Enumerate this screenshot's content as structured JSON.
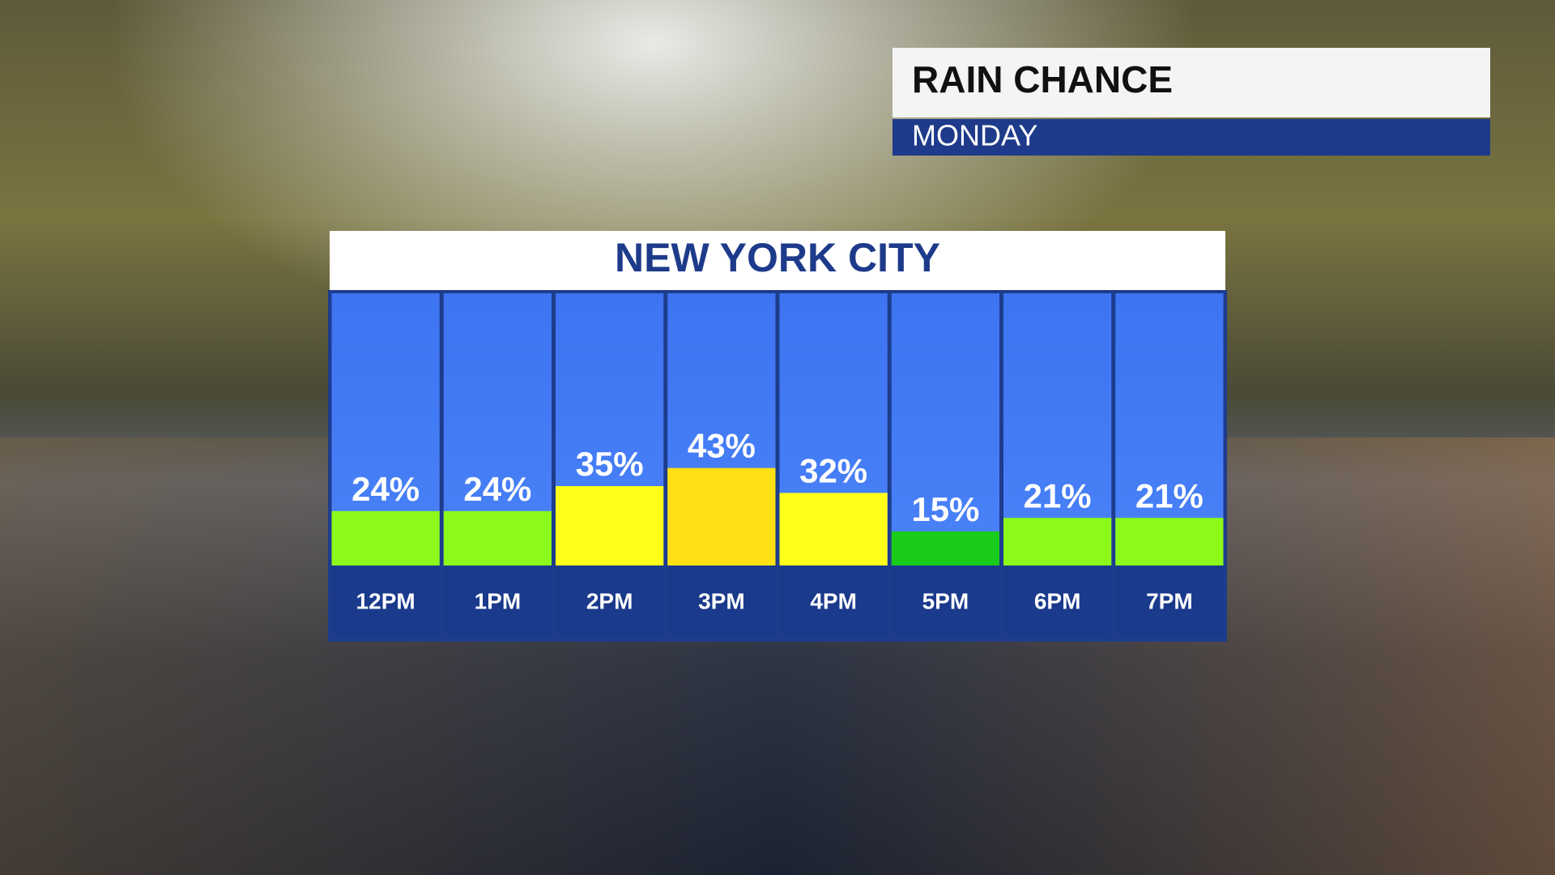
{
  "header": {
    "title": "RAIN CHANCE",
    "subtitle": "MONDAY"
  },
  "chart_data": {
    "type": "bar",
    "title": "NEW YORK CITY",
    "categories": [
      "12PM",
      "1PM",
      "2PM",
      "3PM",
      "4PM",
      "5PM",
      "6PM",
      "7PM"
    ],
    "values": [
      24,
      24,
      35,
      43,
      32,
      15,
      21,
      21
    ],
    "value_labels": [
      "24%",
      "24%",
      "35%",
      "43%",
      "32%",
      "15%",
      "21%",
      "21%"
    ],
    "colors": [
      "#8cf91a",
      "#8cf91a",
      "#ffff1a",
      "#ffe014",
      "#ffff1a",
      "#1acc1a",
      "#8cf91a",
      "#8cf91a"
    ],
    "ylim": [
      0,
      120
    ]
  }
}
